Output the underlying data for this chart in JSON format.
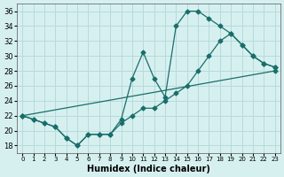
{
  "xlabel": "Humidex (Indice chaleur)",
  "background_color": "#d6f0f0",
  "grid_color": "#b8dada",
  "line_color": "#1a6e6a",
  "xlim": [
    -0.5,
    23.5
  ],
  "ylim": [
    17,
    37
  ],
  "yticks": [
    18,
    20,
    22,
    24,
    26,
    28,
    30,
    32,
    34,
    36
  ],
  "xticks": [
    0,
    1,
    2,
    3,
    4,
    5,
    6,
    7,
    8,
    9,
    10,
    11,
    12,
    13,
    14,
    15,
    16,
    17,
    18,
    19,
    20,
    21,
    22,
    23
  ],
  "line1_x": [
    0,
    1,
    2,
    3,
    4,
    5,
    6,
    7,
    8,
    9,
    10,
    11,
    12,
    13,
    14,
    15,
    16,
    17,
    18,
    19,
    20,
    21,
    22,
    23
  ],
  "line1_y": [
    22,
    21.5,
    21,
    20.5,
    19,
    18,
    19.5,
    19.5,
    19.5,
    21.5,
    27,
    30.5,
    27,
    24.5,
    34,
    36,
    36,
    35,
    34,
    33,
    31.5,
    30,
    29,
    28.5
  ],
  "line2_x": [
    0,
    1,
    2,
    3,
    4,
    5,
    6,
    7,
    8,
    9,
    10,
    11,
    12,
    13,
    14,
    15,
    16,
    17,
    18,
    19,
    20,
    21,
    22,
    23
  ],
  "line2_y": [
    22,
    21.5,
    21,
    20.5,
    19,
    18,
    19.5,
    19.5,
    19.5,
    21,
    22,
    23,
    23,
    24,
    25,
    26,
    28,
    30,
    32,
    33,
    31.5,
    30,
    29,
    28.5
  ],
  "line3_x": [
    0,
    23
  ],
  "line3_y": [
    22,
    28
  ]
}
